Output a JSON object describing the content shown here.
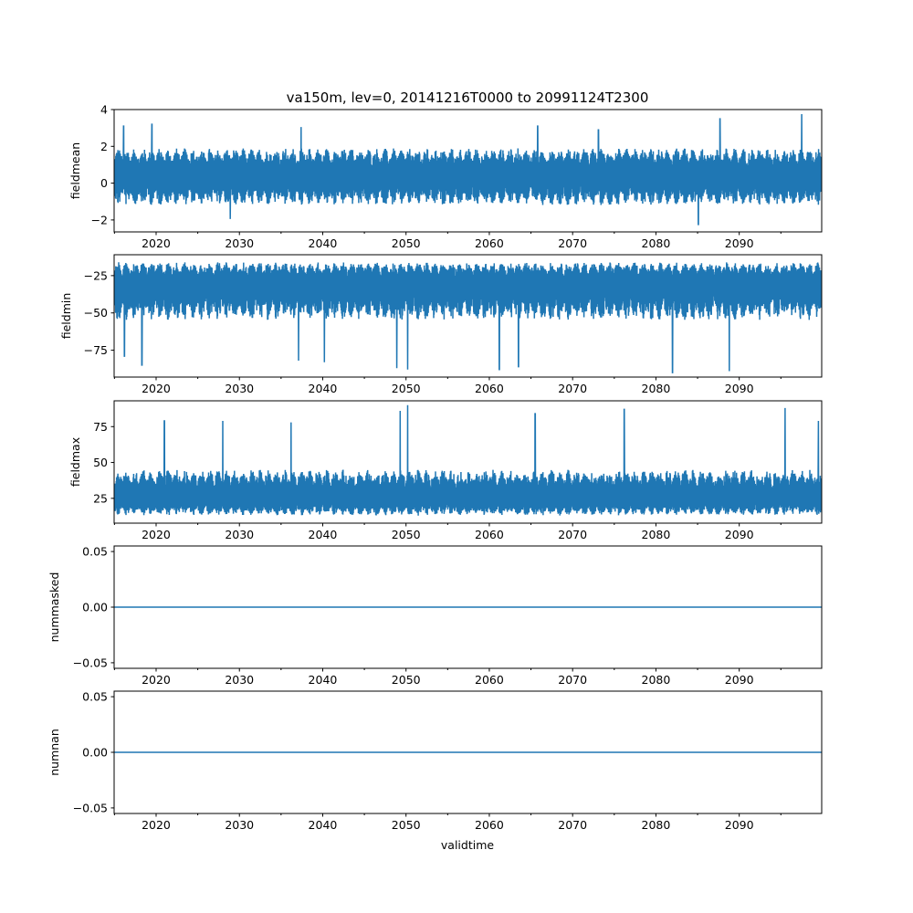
{
  "chart_data": {
    "type": "line",
    "title": "va150m, lev=0, 20141216T0000 to 20991124T2300",
    "xlabel": "validtime",
    "xlim": [
      2014.96,
      2099.9
    ],
    "x_ticks": [
      2020,
      2030,
      2040,
      2050,
      2060,
      2070,
      2080,
      2090
    ],
    "x_tick_labels": [
      "2020",
      "2030",
      "2040",
      "2050",
      "2060",
      "2070",
      "2080",
      "2090"
    ],
    "x_minor_ticks": [
      2015,
      2025,
      2035,
      2045,
      2055,
      2065,
      2075,
      2085,
      2095
    ],
    "line_color": "#1f77b4",
    "grid": false,
    "panels": [
      {
        "ylabel": "fieldmean",
        "ylim": [
          -2.65,
          4.0
        ],
        "y_ticks": [
          -2,
          0,
          2,
          4
        ],
        "y_tick_labels": [
          "−2",
          "0",
          "2",
          "4"
        ],
        "typical_band": [
          -1.2,
          1.9
        ],
        "center": 0.4,
        "extremes": [
          [
            2016.1,
            3.1
          ],
          [
            2019.5,
            3.2
          ],
          [
            2028.9,
            -1.95
          ],
          [
            2037.4,
            3.05
          ],
          [
            2065.8,
            3.1
          ],
          [
            2085.1,
            -2.25
          ],
          [
            2087.7,
            3.5
          ],
          [
            2097.5,
            3.75
          ],
          [
            2073.1,
            2.9
          ]
        ]
      },
      {
        "ylabel": "fieldmin",
        "ylim": [
          -93,
          -11
        ],
        "y_ticks": [
          -75,
          -50,
          -25
        ],
        "y_tick_labels": [
          "−75",
          "−50",
          "−25"
        ],
        "typical_band": [
          -55,
          -16
        ],
        "center": -30,
        "extremes": [
          [
            2018.3,
            -85
          ],
          [
            2037.1,
            -82
          ],
          [
            2040.2,
            -83
          ],
          [
            2048.9,
            -87
          ],
          [
            2050.2,
            -88
          ],
          [
            2061.2,
            -88
          ],
          [
            2063.5,
            -86
          ],
          [
            2082,
            -90
          ],
          [
            2088.8,
            -89
          ],
          [
            2016.2,
            -79
          ]
        ]
      },
      {
        "ylabel": "fieldmax",
        "ylim": [
          7.7,
          93
        ],
        "y_ticks": [
          25,
          50,
          75
        ],
        "y_tick_labels": [
          "25",
          "50",
          "75"
        ],
        "typical_band": [
          13,
          45
        ],
        "center": 25,
        "extremes": [
          [
            2021,
            79
          ],
          [
            2028,
            79
          ],
          [
            2036.2,
            78
          ],
          [
            2049.3,
            86
          ],
          [
            2050.2,
            90
          ],
          [
            2065.5,
            84
          ],
          [
            2076.2,
            87
          ],
          [
            2095.5,
            88
          ],
          [
            2099.5,
            79
          ]
        ]
      },
      {
        "ylabel": "nummasked",
        "ylim": [
          -0.055,
          0.055
        ],
        "y_ticks": [
          -0.05,
          0.0,
          0.05
        ],
        "y_tick_labels": [
          "−0.05",
          "0.00",
          "0.05"
        ],
        "constant": 0.0
      },
      {
        "ylabel": "numnan",
        "ylim": [
          -0.055,
          0.055
        ],
        "y_ticks": [
          -0.05,
          0.0,
          0.05
        ],
        "y_tick_labels": [
          "−0.05",
          "0.00",
          "0.05"
        ],
        "constant": 0.0
      }
    ]
  }
}
